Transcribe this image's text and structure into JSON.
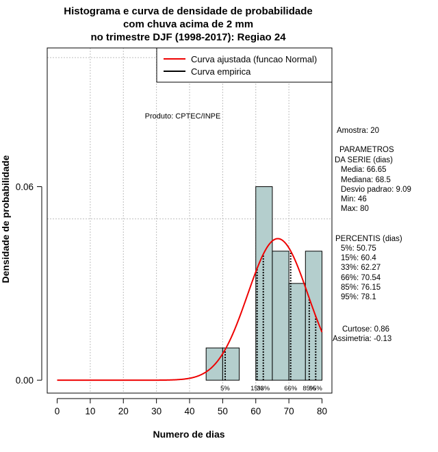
{
  "chart_data": {
    "type": "bar",
    "title_lines": [
      "Histograma e curva de densidade de probabilidade",
      "com chuva acima de 2 mm",
      "no trimestre DJF (1998-2017): Regiao 24"
    ],
    "xlabel": "Numero de dias",
    "ylabel": "Densidade de probabilidade",
    "xlim": [
      -3,
      83
    ],
    "ylim": [
      -0.004,
      0.103
    ],
    "x_ticks": [
      0,
      10,
      20,
      30,
      40,
      50,
      60,
      70,
      80
    ],
    "y_ticks": [
      0.0,
      0.06
    ],
    "y_tick_labels": [
      "0.00",
      "0.06"
    ],
    "x_gridlines": [
      10,
      20,
      30,
      40,
      50,
      60,
      70
    ],
    "y_gridlines": [
      0.05,
      0.1
    ],
    "histogram": {
      "bins": [
        [
          45,
          50
        ],
        [
          50,
          55
        ],
        [
          55,
          60
        ],
        [
          60,
          65
        ],
        [
          65,
          70
        ],
        [
          70,
          75
        ],
        [
          75,
          80
        ]
      ],
      "density": [
        0.01,
        0.01,
        0.0,
        0.06,
        0.04,
        0.03,
        0.04
      ],
      "fill": "#b4cecd"
    },
    "normal_fit": {
      "mean": 66.65,
      "sd": 9.09,
      "n": 20,
      "binwidth": 5,
      "x_from": 0,
      "x_to": 80,
      "color": "#ee0000"
    },
    "percentile_lines": [
      50.75,
      60.4,
      62.27,
      70.54,
      76.15,
      78.1
    ],
    "percentile_labels": [
      {
        "text": "5%",
        "x": 50.75
      },
      {
        "text": "15%",
        "x": 60.4
      },
      {
        "text": "33%",
        "x": 62.27
      },
      {
        "text": "66%",
        "x": 70.54
      },
      {
        "text": "85%",
        "x": 76.15
      },
      {
        "text": "95%",
        "x": 78.1
      }
    ],
    "legend": [
      {
        "label": "Curva ajustada (funcao Normal)",
        "color": "#ee0000"
      },
      {
        "label": "Curva empirica",
        "color": "#000000"
      }
    ],
    "legend_position": "top-right",
    "product_label": "Produto: CPTEC/INPE"
  },
  "side_panel": {
    "sample": "Amostra: 20",
    "params_title_1": "PARAMETROS",
    "params_title_2": "DA SERIE (dias)",
    "params": [
      "Media: 66.65",
      "Mediana: 68.5",
      "Desvio padrao: 9.09",
      "Min: 46",
      "Max: 80"
    ],
    "percentis_title": "PERCENTIS (dias)",
    "percentis": [
      "5%: 50.75",
      "15%: 60.4",
      "33%: 62.27",
      "66%: 70.54",
      "85%: 76.15",
      "95%: 78.1"
    ],
    "curtose": "Curtose: 0.86",
    "assimetria": "Assimetria: -0.13"
  }
}
